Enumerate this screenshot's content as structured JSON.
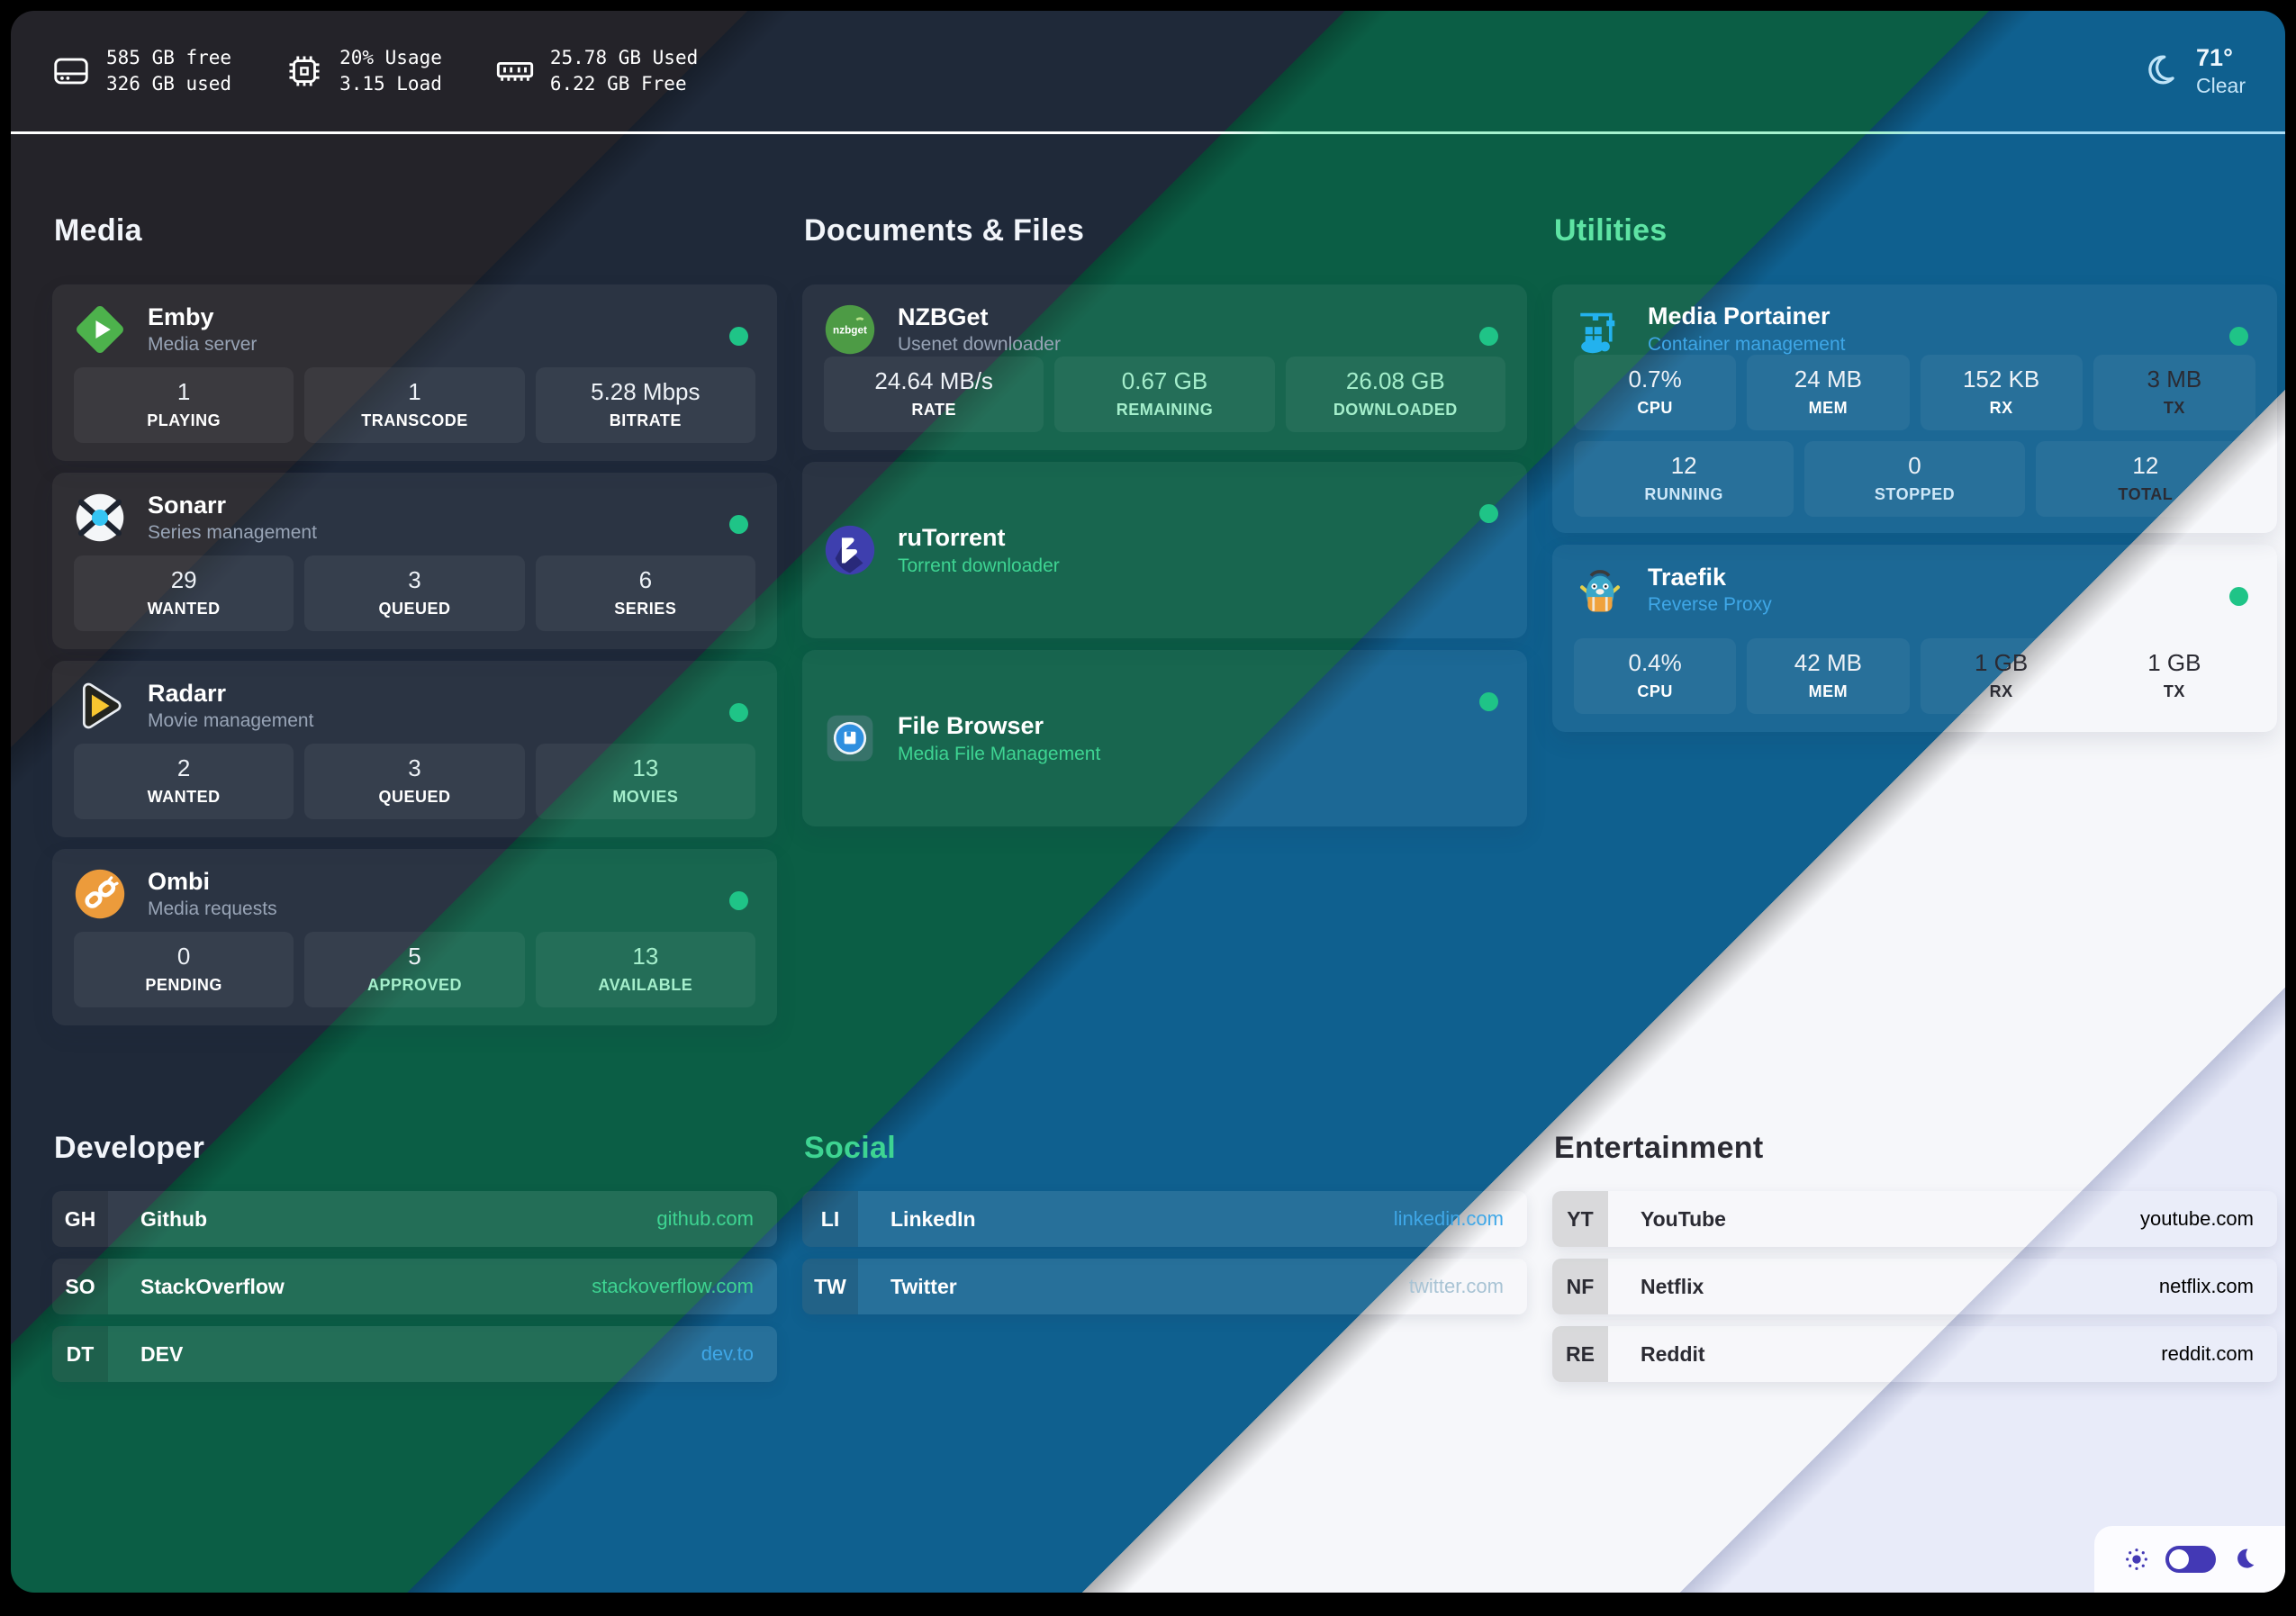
{
  "palette": {
    "band_charcoal": "#242329",
    "band_navy": "#1f2939",
    "band_green": "#0b5e45",
    "band_blue": "#0f608f",
    "band_white": "#f6f7fa",
    "band_lavender": "#e8ebf9",
    "status_online": "#1fc487",
    "accent_mint": "#3ed492",
    "accent_blue": "#3fa7e7",
    "accent_periwinkle": "#9a9ee9",
    "toggle_indigo": "#4339b5"
  },
  "topbar": {
    "stats": [
      {
        "icon": "disk-icon",
        "line1": "585 GB free",
        "line2": "326 GB used"
      },
      {
        "icon": "cpu-icon",
        "line1": "20% Usage",
        "line2": "3.15 Load"
      },
      {
        "icon": "ram-icon",
        "line1": "25.78 GB Used",
        "line2": "6.22 GB Free"
      }
    ],
    "weather": {
      "icon": "weather-moon-icon",
      "temp": "71°",
      "condition": "Clear"
    }
  },
  "service_sections": [
    {
      "id": "media",
      "title": "Media",
      "title_tone": "offwhite",
      "cards": [
        {
          "id": "emby",
          "icon": "emby-icon",
          "title": "Emby",
          "subtitle": "Media server",
          "subtitle_tone": "muted",
          "online": true,
          "height": "h196",
          "stats": [
            {
              "value": "1",
              "label": "PLAYING",
              "value_tone": "light",
              "label_tone": "white"
            },
            {
              "value": "1",
              "label": "TRANSCODE",
              "value_tone": "light",
              "label_tone": "white"
            },
            {
              "value": "5.28 Mbps",
              "label": "BITRATE",
              "value_tone": "light",
              "label_tone": "white"
            }
          ]
        },
        {
          "id": "sonarr",
          "icon": "sonarr-icon",
          "title": "Sonarr",
          "subtitle": "Series management",
          "subtitle_tone": "muted",
          "online": true,
          "height": "h196",
          "stats": [
            {
              "value": "29",
              "label": "WANTED",
              "value_tone": "light",
              "label_tone": "white"
            },
            {
              "value": "3",
              "label": "QUEUED",
              "value_tone": "light",
              "label_tone": "white"
            },
            {
              "value": "6",
              "label": "SERIES",
              "value_tone": "light",
              "label_tone": "white"
            }
          ]
        },
        {
          "id": "radarr",
          "icon": "radarr-icon",
          "title": "Radarr",
          "subtitle": "Movie management",
          "subtitle_tone": "muted",
          "online": true,
          "height": "h196",
          "stats": [
            {
              "value": "2",
              "label": "WANTED",
              "value_tone": "light",
              "label_tone": "white"
            },
            {
              "value": "3",
              "label": "QUEUED",
              "value_tone": "light",
              "label_tone": "white"
            },
            {
              "value": "13",
              "label": "MOVIES",
              "value_tone": "mint",
              "label_tone": "mint"
            }
          ]
        },
        {
          "id": "ombi",
          "icon": "ombi-icon",
          "title": "Ombi",
          "subtitle": "Media requests",
          "subtitle_tone": "muted",
          "online": true,
          "height": "h196",
          "stats": [
            {
              "value": "0",
              "label": "PENDING",
              "value_tone": "light",
              "label_tone": "white"
            },
            {
              "value": "5",
              "label": "APPROVED",
              "value_tone": "light",
              "label_tone": "mint"
            },
            {
              "value": "13",
              "label": "AVAILABLE",
              "value_tone": "mint",
              "label_tone": "mint"
            }
          ]
        }
      ]
    },
    {
      "id": "documents",
      "title": "Documents & Files",
      "title_tone": "offwhite",
      "cards": [
        {
          "id": "nzbget",
          "icon": "nzbget-icon",
          "title": "NZBGet",
          "subtitle": "Usenet downloader",
          "subtitle_tone": "muted",
          "online": true,
          "height": "h184",
          "stats": [
            {
              "value": "24.64 MB/s",
              "label": "RATE",
              "value_tone": "light",
              "label_tone": "white"
            },
            {
              "value": "0.67 GB",
              "label": "REMAINING",
              "value_tone": "mint",
              "label_tone": "mint"
            },
            {
              "value": "26.08 GB",
              "label": "DOWNLOADED",
              "value_tone": "mint",
              "label_tone": "mint"
            }
          ]
        },
        {
          "id": "rutorrent",
          "icon": "rutorrent-icon",
          "title": "ruTorrent",
          "subtitle": "Torrent downloader",
          "subtitle_tone": "mintstrong",
          "online": true,
          "height": "h196",
          "tall": true
        },
        {
          "id": "filebrowser",
          "icon": "filebrowser-icon",
          "title": "File Browser",
          "subtitle": "Media File Management",
          "subtitle_tone": "mintstrong",
          "online": true,
          "height": "h196",
          "tall": true
        }
      ]
    },
    {
      "id": "utilities",
      "title": "Utilities",
      "title_tone": "mintbright",
      "cards": [
        {
          "id": "portainer",
          "icon": "portainer-icon",
          "title": "Media Portainer",
          "subtitle": "Container management",
          "subtitle_tone": "blue",
          "online": true,
          "height": "h276",
          "stats": [
            {
              "value": "0.7%",
              "label": "CPU",
              "value_tone": "light",
              "label_tone": "white"
            },
            {
              "value": "24 MB",
              "label": "MEM",
              "value_tone": "light",
              "label_tone": "white"
            },
            {
              "value": "152 KB",
              "label": "RX",
              "value_tone": "light",
              "label_tone": "white"
            },
            {
              "value": "3 MB",
              "label": "TX",
              "value_tone": "dark",
              "label_tone": "dark"
            }
          ],
          "stats2": [
            {
              "value": "12",
              "label": "RUNNING",
              "value_tone": "light",
              "label_tone": "paleblue"
            },
            {
              "value": "0",
              "label": "STOPPED",
              "value_tone": "light",
              "label_tone": "paleblue"
            },
            {
              "value": "12",
              "label": "TOTAL",
              "value_tone": "light",
              "label_tone": "dark"
            }
          ]
        },
        {
          "id": "traefik",
          "icon": "traefik-icon",
          "title": "Traefik",
          "subtitle": "Reverse Proxy",
          "subtitle_tone": "blue",
          "online": true,
          "height": "h208",
          "stats": [
            {
              "value": "0.4%",
              "label": "CPU",
              "value_tone": "light",
              "label_tone": "white"
            },
            {
              "value": "42 MB",
              "label": "MEM",
              "value_tone": "light",
              "label_tone": "white"
            },
            {
              "value": "1 GB",
              "label": "RX",
              "value_tone": "dark",
              "label_tone": "dark"
            },
            {
              "value": "1 GB",
              "label": "TX",
              "value_tone": "dark",
              "label_tone": "dark"
            }
          ]
        }
      ]
    }
  ],
  "link_sections": [
    {
      "id": "developer",
      "title": "Developer",
      "title_tone": "offwhite",
      "links": [
        {
          "abbr": "GH",
          "name": "Github",
          "url": "github.com",
          "text_tone": "white",
          "url_tone": "mintstrong"
        },
        {
          "abbr": "SO",
          "name": "StackOverflow",
          "url": "stackoverflow.com",
          "text_tone": "white",
          "url_tone": "mintstrong"
        },
        {
          "abbr": "DT",
          "name": "DEV",
          "url": "dev.to",
          "text_tone": "white",
          "url_tone": "blue"
        }
      ]
    },
    {
      "id": "social",
      "title": "Social",
      "title_tone": "mintstrong",
      "links": [
        {
          "abbr": "LI",
          "name": "LinkedIn",
          "url": "linkedin.com",
          "text_tone": "white",
          "url_tone": "blue"
        },
        {
          "abbr": "TW",
          "name": "Twitter",
          "url": "twitter.com",
          "text_tone": "white",
          "url_tone": "bluegray"
        }
      ]
    },
    {
      "id": "entertainment",
      "title": "Entertainment",
      "title_tone": "dark",
      "links": [
        {
          "abbr": "YT",
          "name": "YouTube",
          "url": "youtube.com",
          "text_tone": "dark",
          "url_tone": "periwinkle"
        },
        {
          "abbr": "NF",
          "name": "Netflix",
          "url": "netflix.com",
          "text_tone": "dark",
          "url_tone": "periwinkle"
        },
        {
          "abbr": "RE",
          "name": "Reddit",
          "url": "reddit.com",
          "text_tone": "dark",
          "url_tone": "periwinkle"
        }
      ]
    }
  ],
  "theme_toggle": {
    "state": "light",
    "left_icon": "sun-icon",
    "right_icon": "moon-icon"
  }
}
